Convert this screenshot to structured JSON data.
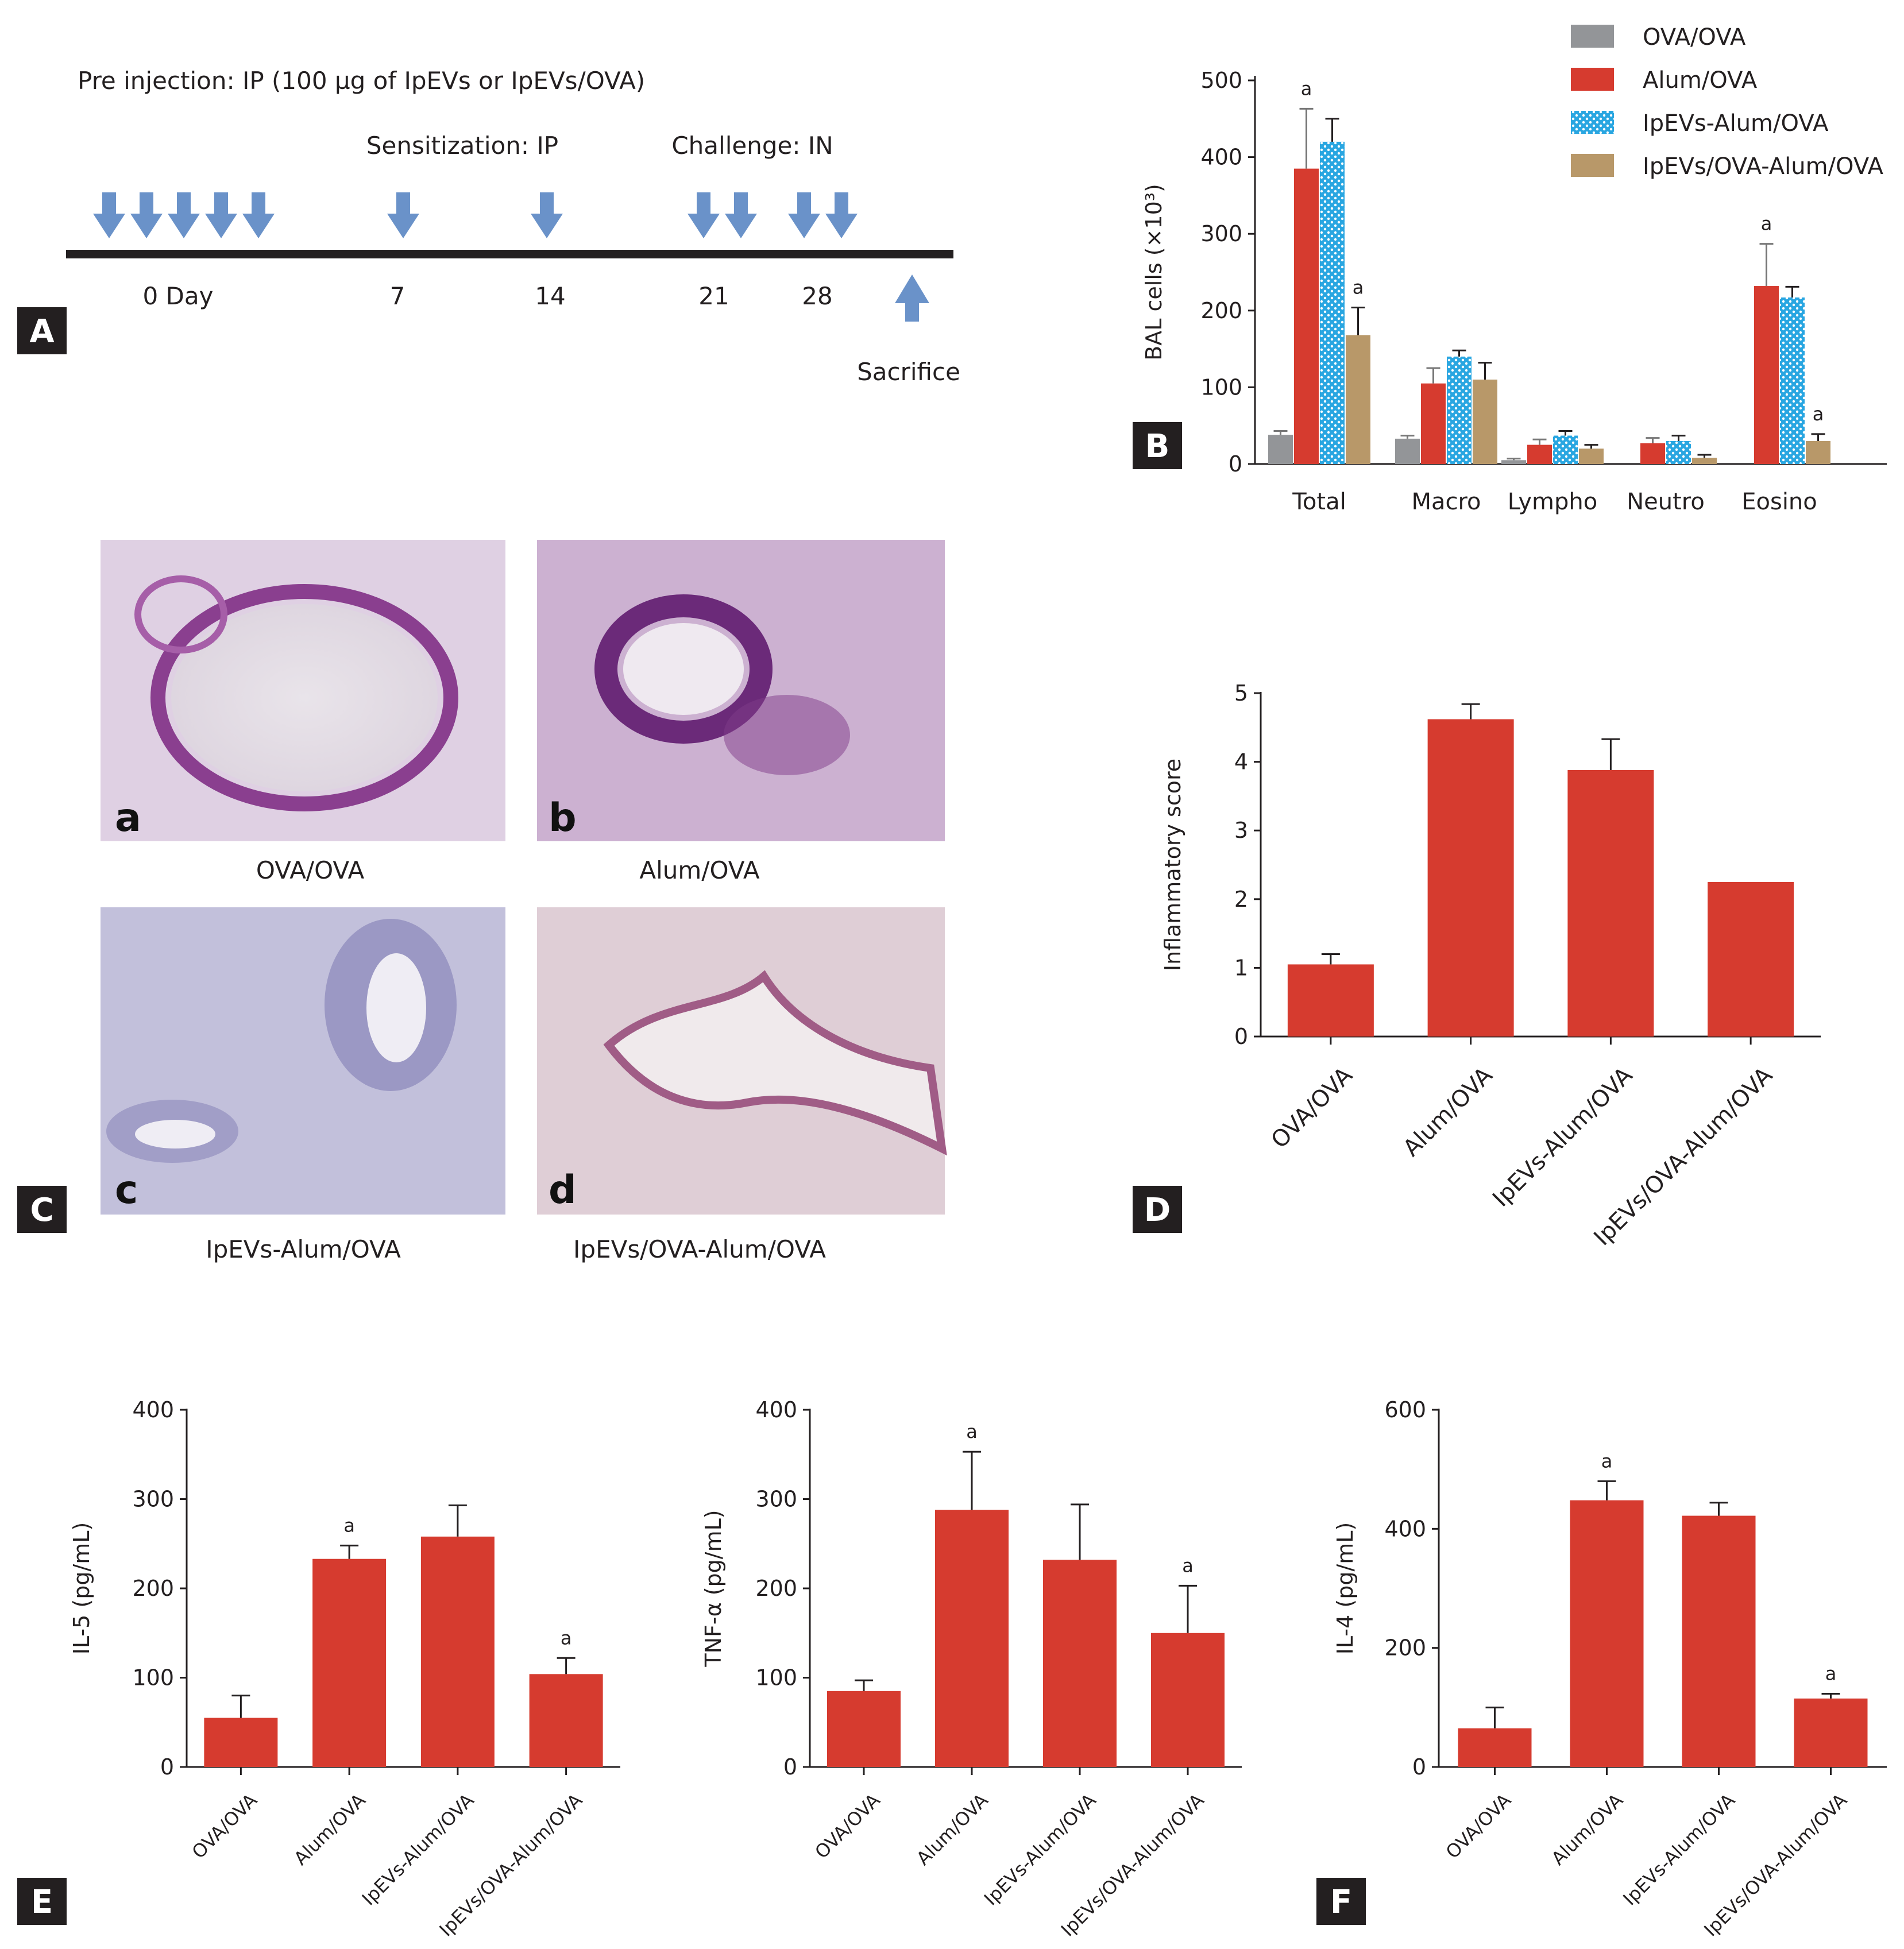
{
  "panels": {
    "a": "A",
    "b": "B",
    "c": "C",
    "d": "D",
    "e": "E",
    "f": "F"
  },
  "timeline": {
    "pre_injection": "Pre injection: IP (100 µg of IpEVs or IpEVs/OVA)",
    "sensitization": "Sensitization: IP",
    "challenge": "Challenge: IN",
    "days": [
      "0 Day",
      "7",
      "14",
      "21",
      "28"
    ],
    "sacrifice": "Sacrifice",
    "arrow_color": "#6a92c9"
  },
  "micrographs": {
    "letters": [
      "a",
      "b",
      "c",
      "d"
    ],
    "captions": [
      "OVA/OVA",
      "Alum/OVA",
      "IpEVs-Alum/OVA",
      "IpEVs/OVA-Alum/OVA"
    ]
  },
  "significance_mark": "a",
  "chart_data": [
    {
      "panel": "B",
      "type": "bar",
      "ylabel": "BAL cells (×10³)",
      "ylim": [
        0,
        500
      ],
      "yticks": [
        0,
        100,
        200,
        300,
        400,
        500
      ],
      "categories": [
        "Total",
        "Macro",
        "Lympho",
        "Neutro",
        "Eosino"
      ],
      "series": [
        {
          "name": "OVA/OVA",
          "color": "#939598",
          "values": [
            38,
            33,
            5,
            0,
            0
          ],
          "errors": [
            5,
            4,
            2,
            0,
            0
          ],
          "sig": [
            false,
            false,
            false,
            false,
            false
          ]
        },
        {
          "name": "Alum/OVA",
          "color": "#d63b2f",
          "values": [
            385,
            105,
            25,
            27,
            232
          ],
          "errors": [
            78,
            20,
            7,
            7,
            55
          ],
          "sig": [
            true,
            false,
            false,
            false,
            true
          ]
        },
        {
          "name": "IpEVs-Alum/OVA",
          "color": "#29a6e1",
          "values": [
            420,
            140,
            37,
            30,
            217
          ],
          "errors": [
            30,
            8,
            6,
            7,
            14
          ],
          "sig": [
            false,
            false,
            false,
            false,
            false
          ]
        },
        {
          "name": "IpEVs/OVA-Alum/OVA",
          "color": "#b89869",
          "values": [
            168,
            110,
            20,
            8,
            30
          ],
          "errors": [
            36,
            22,
            5,
            4,
            9
          ],
          "sig": [
            true,
            false,
            false,
            false,
            true
          ]
        }
      ],
      "legend": "top-right"
    },
    {
      "panel": "D",
      "type": "bar",
      "ylabel": "Inflammatory score",
      "ylim": [
        0,
        5
      ],
      "yticks": [
        0,
        1,
        2,
        3,
        4,
        5
      ],
      "categories": [
        "OVA/OVA",
        "Alum/OVA",
        "IpEVs-Alum/OVA",
        "IpEVs/OVA-Alum/OVA"
      ],
      "values": [
        1.05,
        4.62,
        3.88,
        2.25
      ],
      "errors": [
        0.15,
        0.22,
        0.45,
        0
      ],
      "sig": [
        false,
        false,
        false,
        false
      ],
      "color": "#d63b2f"
    },
    {
      "panel": "E",
      "type": "bar",
      "ylabel": "IL-5 (pg/mL)",
      "ylim": [
        0,
        400
      ],
      "yticks": [
        0,
        100,
        200,
        300,
        400
      ],
      "categories": [
        "OVA/OVA",
        "Alum/OVA",
        "IpEVs-Alum/OVA",
        "IpEVs/OVA-Alum/OVA"
      ],
      "values": [
        55,
        233,
        258,
        104
      ],
      "errors": [
        25,
        15,
        35,
        18
      ],
      "sig": [
        false,
        true,
        false,
        true
      ],
      "color": "#d63b2f"
    },
    {
      "panel": "E",
      "type": "bar",
      "ylabel": "TNF-α (pg/mL)",
      "ylim": [
        0,
        400
      ],
      "yticks": [
        0,
        100,
        200,
        300,
        400
      ],
      "categories": [
        "OVA/OVA",
        "Alum/OVA",
        "IpEVs-Alum/OVA",
        "IpEVs/OVA-Alum/OVA"
      ],
      "values": [
        85,
        288,
        232,
        150
      ],
      "errors": [
        12,
        65,
        62,
        53
      ],
      "sig": [
        false,
        true,
        false,
        true
      ],
      "color": "#d63b2f"
    },
    {
      "panel": "F",
      "type": "bar",
      "ylabel": "IL-4 (pg/mL)",
      "ylim": [
        0,
        600
      ],
      "yticks": [
        0,
        200,
        400,
        600
      ],
      "categories": [
        "OVA/OVA",
        "Alum/OVA",
        "IpEVs-Alum/OVA",
        "IpEVs/OVA-Alum/OVA"
      ],
      "values": [
        65,
        448,
        422,
        115
      ],
      "errors": [
        35,
        32,
        22,
        8
      ],
      "sig": [
        false,
        true,
        false,
        true
      ],
      "color": "#d63b2f"
    }
  ]
}
